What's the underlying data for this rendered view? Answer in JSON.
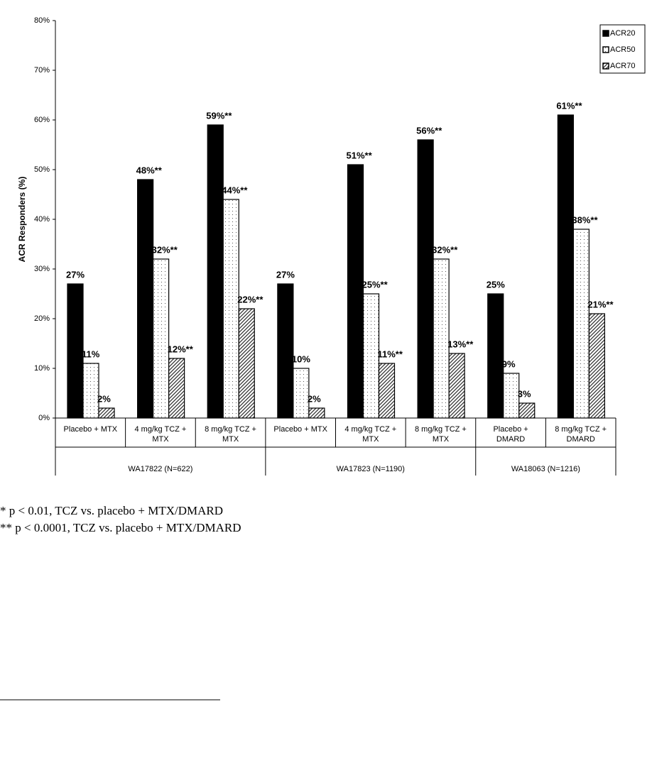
{
  "chart_data": {
    "type": "bar",
    "y_label": "ACR Responders (%)",
    "groups": [
      {
        "name": "WA17822 (N=622)",
        "categories": [
          "Placebo + MTX",
          "4 mg/kg TCZ + MTX",
          "8 mg/kg TCZ + MTX"
        ]
      },
      {
        "name": "WA17823 (N=1190)",
        "categories": [
          "Placebo + MTX",
          "4 mg/kg TCZ + MTX",
          "8 mg/kg TCZ + MTX"
        ]
      },
      {
        "name": "WA18063 (N=1216)",
        "categories": [
          "Placebo + DMARD",
          "8 mg/kg TCZ + DMARD"
        ]
      }
    ],
    "series": [
      {
        "name": "ACR20",
        "color": "#000000",
        "pattern": "solid",
        "values": [
          27,
          48,
          59,
          27,
          51,
          56,
          25,
          61
        ],
        "value_labels": [
          "27%",
          "48%**",
          "59%**",
          "27%",
          "51%**",
          "56%**",
          "25%",
          "61%**"
        ]
      },
      {
        "name": "ACR50",
        "color": "#ffffff",
        "pattern": "dots",
        "values": [
          11,
          32,
          44,
          10,
          25,
          32,
          9,
          38
        ],
        "value_labels": [
          "11%",
          "32%**",
          "44%**",
          "10%",
          "25%**",
          "32%**",
          "9%",
          "38%**"
        ]
      },
      {
        "name": "ACR70",
        "color": "#ffffff",
        "pattern": "hatch",
        "values": [
          2,
          12,
          22,
          2,
          11,
          13,
          3,
          21
        ],
        "value_labels": [
          "2%",
          "12%**",
          "22%**",
          "2%",
          "11%**",
          "13%**",
          "3%",
          "21%**"
        ]
      }
    ],
    "ylim": [
      0,
      80
    ],
    "yticks": [
      {
        "value": 0,
        "label": "0%"
      },
      {
        "value": 10,
        "label": "10%"
      },
      {
        "value": 20,
        "label": "20%"
      },
      {
        "value": 30,
        "label": "30%"
      },
      {
        "value": 40,
        "label": "40%"
      },
      {
        "value": 50,
        "label": "50%"
      },
      {
        "value": 60,
        "label": "60%"
      },
      {
        "value": 70,
        "label": "70%"
      },
      {
        "value": 80,
        "label": "80%"
      }
    ],
    "grid": false,
    "legend": "top-right"
  },
  "footnotes": [
    "* p < 0.01, TCZ vs. placebo + MTX/DMARD",
    "** p < 0.0001, TCZ vs. placebo + MTX/DMARD"
  ]
}
